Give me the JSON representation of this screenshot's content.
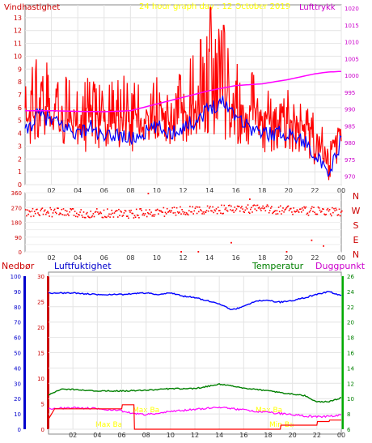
{
  "header": {
    "left_label": "Vindhastighet",
    "center_title": "24 hour graph day : 12 October 2019",
    "right_label": "Lufttrykk"
  },
  "colors": {
    "wind": "#ff0000",
    "wind_avg": "#0000ff",
    "pressure": "#ff00ff",
    "direction": "#ff0000",
    "humidity": "#0000ff",
    "temperature": "#008000",
    "dewpoint": "#ff00ff",
    "rain": "#ff0000",
    "title": "#ffff00",
    "label_red": "#cc0000",
    "label_blue": "#0000cc",
    "label_green": "#008000",
    "label_magenta": "#cc00cc",
    "frame": "#888888"
  },
  "chart_data": [
    {
      "id": "wind",
      "type": "line",
      "title": "24 hour graph day : 12 October 2019",
      "xlabel": "",
      "ylabel": "Vindhastighet",
      "y2label": "Lufttrykk",
      "xticks": [
        "02",
        "04",
        "06",
        "08",
        "10",
        "12",
        "14",
        "16",
        "18",
        "20",
        "22",
        "00"
      ],
      "ylim": [
        0,
        14
      ],
      "yticks": [
        0,
        1,
        2,
        3,
        4,
        5,
        6,
        7,
        8,
        9,
        10,
        11,
        12,
        13
      ],
      "y2lim": [
        967.5,
        1021
      ],
      "y2ticks": [
        970,
        975,
        980,
        985,
        990,
        995,
        1000,
        1005,
        1010,
        1015,
        1020
      ],
      "grid": true,
      "series": [
        {
          "name": "Vindhastighet",
          "axis": "left",
          "x": [
            0,
            1,
            2,
            3,
            4,
            5,
            6,
            7,
            8,
            9,
            10,
            11,
            12,
            13,
            14,
            15,
            16,
            17,
            18,
            19,
            20,
            21,
            22,
            23,
            24
          ],
          "values": [
            5.5,
            6.5,
            6.0,
            5.5,
            5.0,
            5.5,
            4.5,
            5.0,
            4.5,
            5.0,
            5.5,
            5.0,
            5.5,
            6.0,
            6.5,
            7.0,
            6.5,
            5.5,
            5.0,
            5.0,
            5.0,
            4.5,
            3.5,
            2.0,
            4.5
          ],
          "peak": [
            8.5,
            10.5,
            9.5,
            8.5,
            8.0,
            8.5,
            7.5,
            9.0,
            8.0,
            8.5,
            8.5,
            8.0,
            9.0,
            11.0,
            13.8,
            12.5,
            9.5,
            9.0,
            8.5,
            7.5,
            7.5,
            6.5,
            6.0,
            3.5,
            4.8
          ],
          "low": [
            2.5,
            3.0,
            3.0,
            3.0,
            2.5,
            2.5,
            2.5,
            2.5,
            2.5,
            3.0,
            3.0,
            3.0,
            3.0,
            3.5,
            4.0,
            3.5,
            3.0,
            3.0,
            2.5,
            2.5,
            2.5,
            2.0,
            1.5,
            0.0,
            2.5
          ]
        },
        {
          "name": "Middelvind",
          "axis": "left",
          "x": [
            0,
            1,
            2,
            3,
            4,
            5,
            6,
            7,
            8,
            9,
            10,
            11,
            12,
            13,
            14,
            15,
            16,
            17,
            18,
            19,
            20,
            21,
            22,
            23,
            24
          ],
          "values": [
            4.0,
            5.5,
            5.0,
            4.5,
            4.0,
            4.5,
            3.5,
            4.0,
            3.5,
            4.0,
            4.5,
            4.0,
            4.5,
            5.0,
            6.0,
            6.5,
            5.5,
            4.5,
            4.0,
            4.0,
            4.0,
            3.5,
            2.5,
            0.5,
            3.5
          ]
        },
        {
          "name": "Lufttrykk",
          "axis": "right",
          "x": [
            0,
            2,
            4,
            6,
            8,
            10,
            12,
            14,
            16,
            18,
            20,
            22,
            23,
            24
          ],
          "values": [
            989.5,
            989.5,
            989.3,
            989.2,
            989.5,
            991.5,
            993.5,
            995.5,
            997.0,
            997.5,
            998.8,
            1000.5,
            1001.0,
            1001.2
          ]
        }
      ]
    },
    {
      "id": "direction",
      "type": "scatter",
      "xticks": [
        "02",
        "04",
        "06",
        "08",
        "10",
        "12",
        "14",
        "16",
        "18",
        "20",
        "22",
        "00"
      ],
      "ylim": [
        0,
        360
      ],
      "yticks": [
        0,
        45,
        90,
        135,
        180,
        225,
        270,
        315,
        360
      ],
      "ytick_labels": [
        "0",
        "45",
        "90",
        "135",
        "180",
        "225",
        "270",
        "315",
        "360"
      ],
      "compass_labels": [
        "N",
        "W",
        "S",
        "E",
        "N"
      ],
      "series": [
        {
          "name": "Vindretning",
          "x": [
            0,
            2,
            4,
            6,
            8,
            10,
            12,
            14,
            16,
            18,
            20,
            22,
            24
          ],
          "values": [
            240,
            245,
            238,
            240,
            235,
            245,
            255,
            260,
            262,
            265,
            258,
            250,
            245
          ],
          "outliers_x": [
            9.3,
            11.8,
            13.1,
            15.6,
            17.0,
            19.8,
            21.7,
            22.6
          ],
          "outliers_y": [
            360,
            5,
            5,
            60,
            325,
            5,
            75,
            40
          ]
        }
      ]
    },
    {
      "id": "weather",
      "type": "line",
      "labels": {
        "rain": "Nedbør",
        "humidity": "Luftfuktighet",
        "temperature": "Temperatur",
        "dewpoint": "Duggpunkt"
      },
      "annotations": [
        "Max Ba",
        "Max Ba",
        "Max Ba",
        "Min Ba"
      ],
      "xticks": [
        "02",
        "04",
        "06",
        "08",
        "10",
        "12",
        "14",
        "16",
        "18",
        "20",
        "22",
        "00"
      ],
      "ylim_humidity": [
        0,
        100
      ],
      "yticks_humidity": [
        0,
        10,
        20,
        30,
        40,
        50,
        60,
        70,
        80,
        90,
        100
      ],
      "ylim_rain": [
        0,
        30
      ],
      "yticks_rain": [
        0,
        5,
        10,
        15,
        20,
        25,
        30
      ],
      "ylim_temp": [
        6,
        26
      ],
      "yticks_temp": [
        6,
        8,
        10,
        12,
        14,
        16,
        18,
        20,
        22,
        24,
        26
      ],
      "series": [
        {
          "name": "Luftfuktighet",
          "axis": "humidity",
          "x": [
            0,
            2,
            4,
            6,
            8,
            9,
            10,
            11,
            12,
            13,
            14,
            15,
            16,
            17,
            18,
            19,
            20,
            21,
            22,
            23,
            24
          ],
          "values": [
            89,
            89,
            88,
            88,
            89,
            88,
            89,
            87,
            86,
            84,
            82,
            78,
            80,
            84,
            84,
            83,
            84,
            86,
            88,
            90,
            87
          ]
        },
        {
          "name": "Temperatur",
          "axis": "temp",
          "x": [
            0,
            1,
            2,
            4,
            6,
            8,
            10,
            12,
            14,
            16,
            18,
            20,
            21,
            22,
            23,
            24
          ],
          "values": [
            10.5,
            11.2,
            11.2,
            11.0,
            11.0,
            11.1,
            11.3,
            11.3,
            11.9,
            11.4,
            11.0,
            10.6,
            10.4,
            9.6,
            9.6,
            10.1
          ]
        },
        {
          "name": "Duggpunkt",
          "axis": "temp",
          "x": [
            0,
            2,
            4,
            6,
            7,
            8,
            10,
            12,
            14,
            16,
            18,
            20,
            22,
            23,
            24
          ],
          "values": [
            8.7,
            8.8,
            8.7,
            8.4,
            8.0,
            7.9,
            8.3,
            8.6,
            8.9,
            8.5,
            8.2,
            7.9,
            7.6,
            7.7,
            7.8
          ]
        },
        {
          "name": "Nedbør",
          "axis": "rain",
          "x": [
            0,
            0.5,
            6,
            6.05,
            7,
            7.05,
            19,
            19.05,
            22,
            22.05,
            23,
            23.05,
            24
          ],
          "values": [
            2.0,
            4.0,
            4.0,
            4.8,
            4.8,
            0.0,
            0.0,
            0.8,
            0.8,
            1.5,
            1.5,
            1.8,
            1.8
          ]
        }
      ]
    }
  ]
}
